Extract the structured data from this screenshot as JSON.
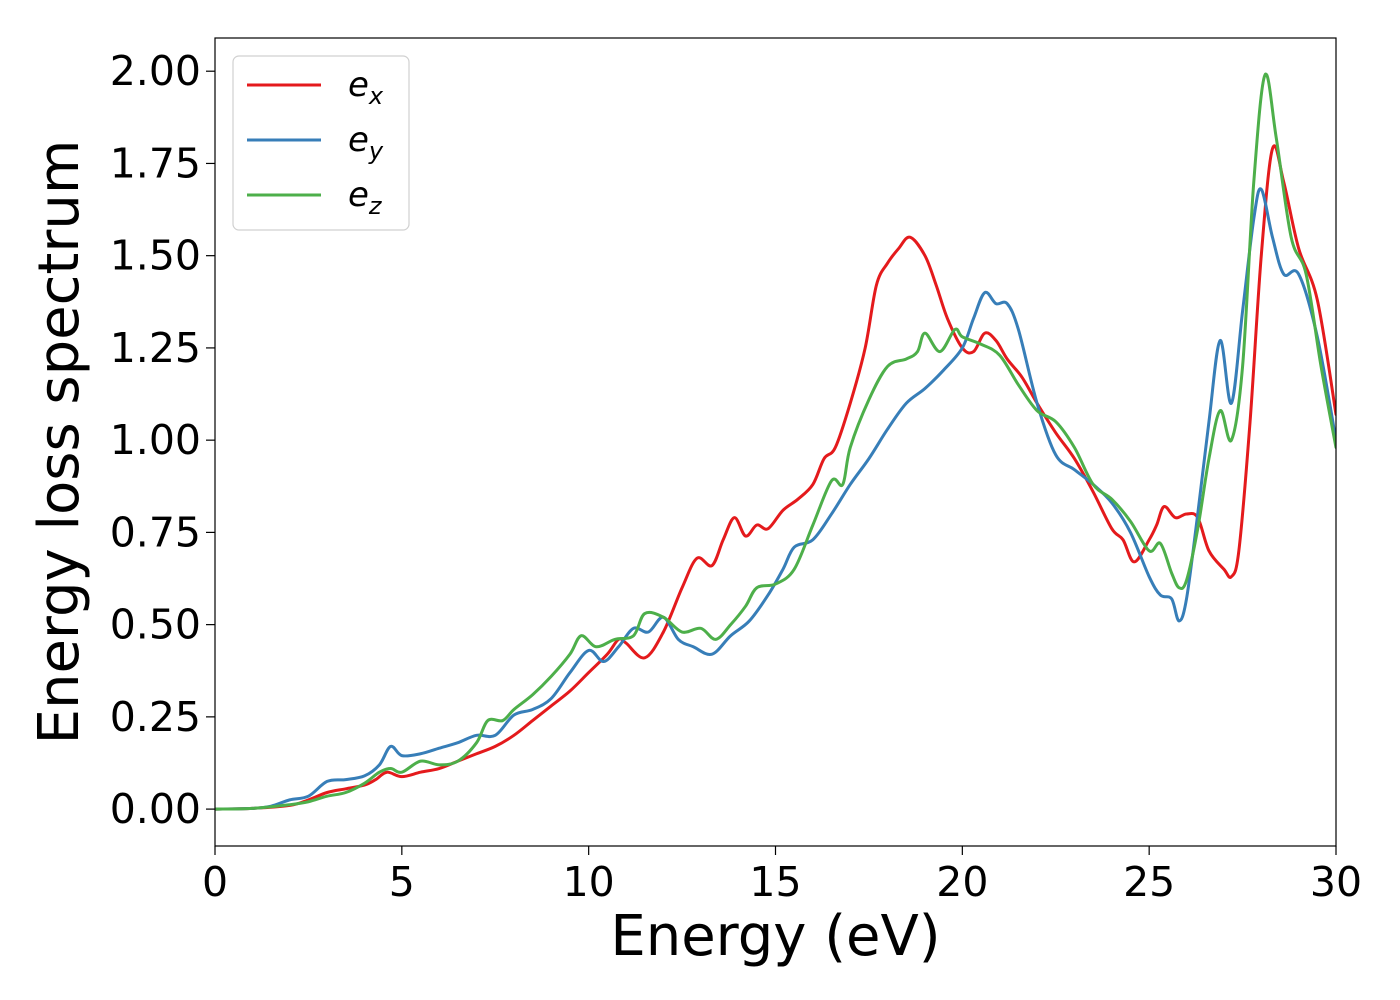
{
  "colors": {
    "ex": "#e41a1c",
    "ey": "#377eb8",
    "ez": "#4daf4a"
  },
  "chart_data": {
    "type": "line",
    "title": "",
    "xlabel": "Energy (eV)",
    "ylabel": "Energy loss spectrum",
    "xlim": [
      0,
      30
    ],
    "ylim": [
      -0.1,
      2.09
    ],
    "xticks": [
      0,
      5,
      10,
      15,
      20,
      25,
      30
    ],
    "xtick_labels": [
      "0",
      "5",
      "10",
      "15",
      "20",
      "25",
      "30"
    ],
    "yticks": [
      0,
      0.25,
      0.5,
      0.75,
      1.0,
      1.25,
      1.5,
      1.75,
      2.0
    ],
    "ytick_labels": [
      "0.00",
      "0.25",
      "0.50",
      "0.75",
      "1.00",
      "1.25",
      "1.50",
      "1.75",
      "2.00"
    ],
    "grid": false,
    "legend_position": "top-left",
    "series": [
      {
        "name": "e_x",
        "legend_base": "e",
        "legend_sub": "x",
        "color": "#e41a1c",
        "points": [
          [
            0,
            0
          ],
          [
            1,
            0.002
          ],
          [
            2,
            0.01
          ],
          [
            2.5,
            0.025
          ],
          [
            3,
            0.045
          ],
          [
            3.5,
            0.055
          ],
          [
            4,
            0.065
          ],
          [
            4.3,
            0.08
          ],
          [
            4.6,
            0.1
          ],
          [
            5,
            0.088
          ],
          [
            5.5,
            0.1
          ],
          [
            6,
            0.11
          ],
          [
            6.5,
            0.13
          ],
          [
            7,
            0.15
          ],
          [
            7.5,
            0.17
          ],
          [
            8,
            0.2
          ],
          [
            8.5,
            0.24
          ],
          [
            9,
            0.28
          ],
          [
            9.5,
            0.32
          ],
          [
            10,
            0.37
          ],
          [
            10.5,
            0.42
          ],
          [
            10.8,
            0.46
          ],
          [
            11,
            0.45
          ],
          [
            11.5,
            0.41
          ],
          [
            12,
            0.48
          ],
          [
            12.5,
            0.6
          ],
          [
            12.9,
            0.68
          ],
          [
            13.3,
            0.66
          ],
          [
            13.6,
            0.73
          ],
          [
            13.9,
            0.79
          ],
          [
            14.2,
            0.74
          ],
          [
            14.5,
            0.77
          ],
          [
            14.8,
            0.76
          ],
          [
            15.2,
            0.81
          ],
          [
            15.6,
            0.84
          ],
          [
            16,
            0.88
          ],
          [
            16.3,
            0.95
          ],
          [
            16.6,
            0.98
          ],
          [
            17,
            1.1
          ],
          [
            17.4,
            1.25
          ],
          [
            17.7,
            1.42
          ],
          [
            18,
            1.48
          ],
          [
            18.3,
            1.52
          ],
          [
            18.6,
            1.55
          ],
          [
            19,
            1.5
          ],
          [
            19.3,
            1.42
          ],
          [
            19.6,
            1.33
          ],
          [
            20,
            1.25
          ],
          [
            20.3,
            1.24
          ],
          [
            20.6,
            1.29
          ],
          [
            20.9,
            1.27
          ],
          [
            21.2,
            1.22
          ],
          [
            21.6,
            1.17
          ],
          [
            22,
            1.1
          ],
          [
            22.5,
            1.02
          ],
          [
            23,
            0.95
          ],
          [
            23.5,
            0.86
          ],
          [
            24,
            0.76
          ],
          [
            24.3,
            0.73
          ],
          [
            24.6,
            0.67
          ],
          [
            25,
            0.73
          ],
          [
            25.2,
            0.77
          ],
          [
            25.4,
            0.82
          ],
          [
            25.7,
            0.79
          ],
          [
            26,
            0.8
          ],
          [
            26.3,
            0.79
          ],
          [
            26.6,
            0.7
          ],
          [
            27,
            0.65
          ],
          [
            27.2,
            0.63
          ],
          [
            27.4,
            0.7
          ],
          [
            27.7,
            1.05
          ],
          [
            28,
            1.5
          ],
          [
            28.3,
            1.79
          ],
          [
            28.6,
            1.7
          ],
          [
            29,
            1.52
          ],
          [
            29.5,
            1.38
          ],
          [
            30,
            1.07
          ]
        ]
      },
      {
        "name": "e_y",
        "legend_base": "e",
        "legend_sub": "y",
        "color": "#377eb8",
        "points": [
          [
            0,
            0
          ],
          [
            1,
            0.002
          ],
          [
            1.5,
            0.008
          ],
          [
            2,
            0.025
          ],
          [
            2.5,
            0.035
          ],
          [
            3,
            0.075
          ],
          [
            3.5,
            0.08
          ],
          [
            4,
            0.09
          ],
          [
            4.4,
            0.12
          ],
          [
            4.7,
            0.17
          ],
          [
            5,
            0.145
          ],
          [
            5.5,
            0.15
          ],
          [
            6,
            0.165
          ],
          [
            6.5,
            0.18
          ],
          [
            7,
            0.2
          ],
          [
            7.5,
            0.2
          ],
          [
            8,
            0.255
          ],
          [
            8.5,
            0.27
          ],
          [
            9,
            0.3
          ],
          [
            9.5,
            0.37
          ],
          [
            10,
            0.43
          ],
          [
            10.4,
            0.4
          ],
          [
            10.8,
            0.44
          ],
          [
            11.2,
            0.49
          ],
          [
            11.6,
            0.48
          ],
          [
            12,
            0.52
          ],
          [
            12.4,
            0.46
          ],
          [
            12.8,
            0.44
          ],
          [
            13.3,
            0.42
          ],
          [
            13.8,
            0.47
          ],
          [
            14.3,
            0.51
          ],
          [
            14.8,
            0.58
          ],
          [
            15.2,
            0.65
          ],
          [
            15.5,
            0.71
          ],
          [
            16,
            0.73
          ],
          [
            16.5,
            0.8
          ],
          [
            17,
            0.88
          ],
          [
            17.5,
            0.95
          ],
          [
            18,
            1.03
          ],
          [
            18.5,
            1.1
          ],
          [
            19,
            1.14
          ],
          [
            19.5,
            1.19
          ],
          [
            20,
            1.25
          ],
          [
            20.3,
            1.33
          ],
          [
            20.6,
            1.4
          ],
          [
            20.9,
            1.37
          ],
          [
            21.2,
            1.37
          ],
          [
            21.5,
            1.3
          ],
          [
            22,
            1.1
          ],
          [
            22.5,
            0.96
          ],
          [
            23,
            0.92
          ],
          [
            23.5,
            0.88
          ],
          [
            24,
            0.83
          ],
          [
            24.5,
            0.75
          ],
          [
            25,
            0.63
          ],
          [
            25.3,
            0.58
          ],
          [
            25.6,
            0.57
          ],
          [
            25.8,
            0.51
          ],
          [
            26,
            0.57
          ],
          [
            26.3,
            0.8
          ],
          [
            26.6,
            1.05
          ],
          [
            26.9,
            1.27
          ],
          [
            27.2,
            1.1
          ],
          [
            27.5,
            1.35
          ],
          [
            27.8,
            1.6
          ],
          [
            28,
            1.68
          ],
          [
            28.3,
            1.55
          ],
          [
            28.6,
            1.45
          ],
          [
            29,
            1.45
          ],
          [
            29.5,
            1.28
          ],
          [
            30,
            1.0
          ]
        ]
      },
      {
        "name": "e_z",
        "legend_base": "e",
        "legend_sub": "z",
        "color": "#4daf4a",
        "points": [
          [
            0,
            0
          ],
          [
            1,
            0.002
          ],
          [
            2,
            0.012
          ],
          [
            2.5,
            0.02
          ],
          [
            3,
            0.035
          ],
          [
            3.5,
            0.045
          ],
          [
            4,
            0.07
          ],
          [
            4.4,
            0.1
          ],
          [
            4.7,
            0.11
          ],
          [
            5,
            0.1
          ],
          [
            5.5,
            0.13
          ],
          [
            6,
            0.12
          ],
          [
            6.5,
            0.13
          ],
          [
            7,
            0.18
          ],
          [
            7.3,
            0.24
          ],
          [
            7.7,
            0.24
          ],
          [
            8,
            0.27
          ],
          [
            8.5,
            0.31
          ],
          [
            9,
            0.36
          ],
          [
            9.5,
            0.42
          ],
          [
            9.8,
            0.47
          ],
          [
            10.2,
            0.44
          ],
          [
            10.7,
            0.46
          ],
          [
            11.2,
            0.47
          ],
          [
            11.5,
            0.53
          ],
          [
            12,
            0.52
          ],
          [
            12.5,
            0.48
          ],
          [
            13,
            0.49
          ],
          [
            13.4,
            0.46
          ],
          [
            13.8,
            0.5
          ],
          [
            14.2,
            0.55
          ],
          [
            14.5,
            0.6
          ],
          [
            15,
            0.61
          ],
          [
            15.5,
            0.65
          ],
          [
            16,
            0.77
          ],
          [
            16.5,
            0.89
          ],
          [
            16.8,
            0.88
          ],
          [
            17,
            0.98
          ],
          [
            17.5,
            1.11
          ],
          [
            18,
            1.2
          ],
          [
            18.5,
            1.22
          ],
          [
            18.8,
            1.24
          ],
          [
            19,
            1.29
          ],
          [
            19.4,
            1.24
          ],
          [
            19.8,
            1.3
          ],
          [
            20,
            1.28
          ],
          [
            20.5,
            1.26
          ],
          [
            21,
            1.23
          ],
          [
            21.5,
            1.15
          ],
          [
            22,
            1.08
          ],
          [
            22.5,
            1.05
          ],
          [
            23,
            0.98
          ],
          [
            23.5,
            0.88
          ],
          [
            24,
            0.84
          ],
          [
            24.5,
            0.78
          ],
          [
            25,
            0.7
          ],
          [
            25.3,
            0.72
          ],
          [
            25.6,
            0.64
          ],
          [
            25.8,
            0.6
          ],
          [
            26,
            0.62
          ],
          [
            26.3,
            0.76
          ],
          [
            26.6,
            0.95
          ],
          [
            26.9,
            1.08
          ],
          [
            27.2,
            1.0
          ],
          [
            27.5,
            1.2
          ],
          [
            27.8,
            1.7
          ],
          [
            28.1,
            1.99
          ],
          [
            28.4,
            1.82
          ],
          [
            28.8,
            1.55
          ],
          [
            29.2,
            1.45
          ],
          [
            29.6,
            1.2
          ],
          [
            30,
            0.98
          ]
        ]
      }
    ]
  }
}
